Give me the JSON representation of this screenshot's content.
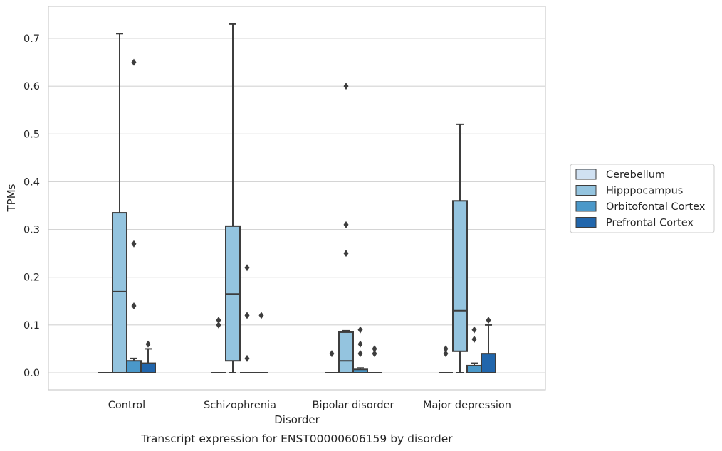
{
  "chart_data": {
    "type": "box",
    "title": "Transcript expression for ENST00000606159 by disorder",
    "xlabel": "Disorder",
    "ylabel": "TPMs",
    "categories": [
      "Control",
      "Schizophrenia",
      "Bipolar disorder",
      "Major depression"
    ],
    "ylim": [
      -0.035,
      0.745
    ],
    "yticks": [
      0.0,
      0.1,
      0.2,
      0.3,
      0.4,
      0.5,
      0.6,
      0.7
    ],
    "ytick_labels": [
      "0.0",
      "0.1",
      "0.2",
      "0.3",
      "0.4",
      "0.5",
      "0.6",
      "0.7"
    ],
    "grid": "horizontal",
    "legend_position": "right",
    "series": [
      {
        "name": "Cerebellum",
        "color": "#d0e1f2",
        "boxes": [
          {
            "q1": 0,
            "median": 0,
            "q3": 0,
            "whislo": 0,
            "whishi": 0,
            "fliers": []
          },
          {
            "q1": 0,
            "median": 0,
            "q3": 0,
            "whislo": 0,
            "whishi": 0,
            "fliers": [
              0.1,
              0.11
            ]
          },
          {
            "q1": 0,
            "median": 0,
            "q3": 0,
            "whislo": 0,
            "whishi": 0,
            "fliers": [
              0.04
            ]
          },
          {
            "q1": 0,
            "median": 0,
            "q3": 0,
            "whislo": 0,
            "whishi": 0,
            "fliers": [
              0.04,
              0.05
            ]
          }
        ]
      },
      {
        "name": "Hipppocampus",
        "color": "#94c4df",
        "boxes": [
          {
            "q1": 0,
            "median": 0.17,
            "q3": 0.335,
            "whislo": 0,
            "whishi": 0.71,
            "fliers": []
          },
          {
            "q1": 0.025,
            "median": 0.165,
            "q3": 0.307,
            "whislo": 0,
            "whishi": 0.73,
            "fliers": []
          },
          {
            "q1": 0,
            "median": 0.025,
            "q3": 0.085,
            "whislo": 0,
            "whishi": 0.088,
            "fliers": [
              0.25,
              0.31,
              0.6
            ]
          },
          {
            "q1": 0.045,
            "median": 0.13,
            "q3": 0.36,
            "whislo": 0,
            "whishi": 0.52,
            "fliers": []
          }
        ]
      },
      {
        "name": "Orbitofontal Cortex",
        "color": "#4a98c9",
        "boxes": [
          {
            "q1": 0,
            "median": 0,
            "q3": 0.025,
            "whislo": 0,
            "whishi": 0.03,
            "fliers": [
              0.14,
              0.27,
              0.65
            ]
          },
          {
            "q1": 0,
            "median": 0,
            "q3": 0,
            "whislo": 0,
            "whishi": 0,
            "fliers": [
              0.03,
              0.12,
              0.22
            ]
          },
          {
            "q1": 0,
            "median": 0,
            "q3": 0.007,
            "whislo": 0,
            "whishi": 0.01,
            "fliers": [
              0.04,
              0.06,
              0.09
            ]
          },
          {
            "q1": 0,
            "median": 0,
            "q3": 0.015,
            "whislo": 0,
            "whishi": 0.02,
            "fliers": [
              0.07,
              0.09
            ]
          }
        ]
      },
      {
        "name": "Prefrontal Cortex",
        "color": "#2166ac",
        "boxes": [
          {
            "q1": 0,
            "median": 0,
            "q3": 0.02,
            "whislo": 0,
            "whishi": 0.05,
            "fliers": [
              0.06
            ]
          },
          {
            "q1": 0,
            "median": 0,
            "q3": 0,
            "whislo": 0,
            "whishi": 0,
            "fliers": [
              0.12
            ]
          },
          {
            "q1": 0,
            "median": 0,
            "q3": 0,
            "whislo": 0,
            "whishi": 0,
            "fliers": [
              0.04,
              0.05
            ]
          },
          {
            "q1": 0,
            "median": 0,
            "q3": 0.04,
            "whislo": 0,
            "whishi": 0.1,
            "fliers": [
              0.11
            ]
          }
        ]
      }
    ]
  }
}
